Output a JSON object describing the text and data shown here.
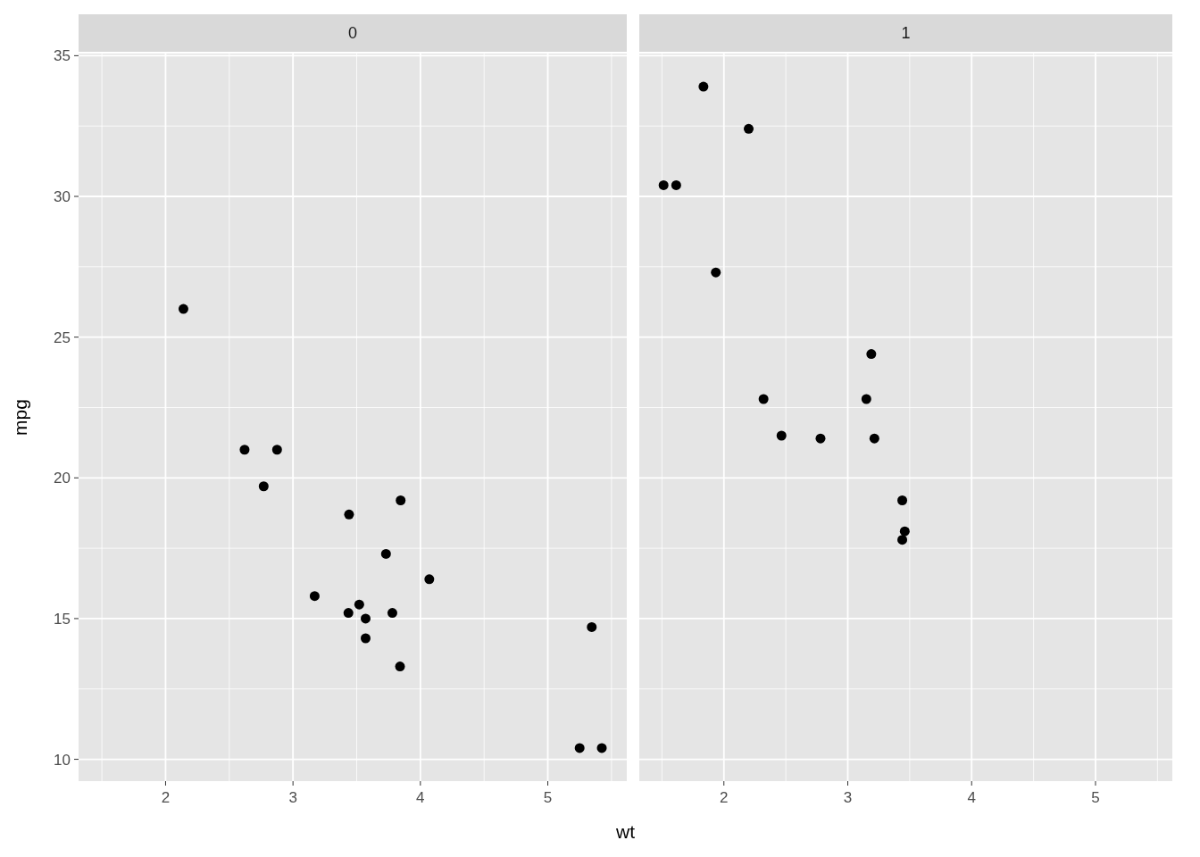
{
  "chart_data": [
    {
      "type": "scatter",
      "title": "0",
      "xlabel": "wt",
      "ylabel": "mpg",
      "grid": true,
      "marker": "circle",
      "xlim": [
        1.317,
        5.62
      ],
      "ylim": [
        9.225,
        35.075
      ],
      "xticks": [
        2,
        3,
        4,
        5
      ],
      "yticks": [
        10,
        15,
        20,
        25,
        30,
        35
      ],
      "series": [
        {
          "color": "#000000",
          "x": [
            2.62,
            2.875,
            3.44,
            3.57,
            4.07,
            3.73,
            3.78,
            5.25,
            5.424,
            5.345,
            3.52,
            3.435,
            3.84,
            3.845,
            2.14,
            3.17,
            2.77,
            3.57
          ],
          "values": [
            21,
            21,
            18.7,
            14.3,
            16.4,
            17.3,
            15.2,
            10.4,
            10.4,
            14.7,
            15.5,
            15.2,
            13.3,
            19.2,
            26,
            15.8,
            19.7,
            15
          ]
        }
      ]
    },
    {
      "type": "scatter",
      "title": "1",
      "grid": true,
      "marker": "circle",
      "tick_labels": "x",
      "xlim": [
        1.317,
        5.62
      ],
      "ylim": [
        9.225,
        35.075
      ],
      "xticks": [
        2,
        3,
        4,
        5
      ],
      "yticks": [
        10,
        15,
        20,
        25,
        30,
        35
      ],
      "series": [
        {
          "color": "#000000",
          "x": [
            2.32,
            3.215,
            3.46,
            3.19,
            3.15,
            3.44,
            3.44,
            2.2,
            1.615,
            1.835,
            2.465,
            1.935,
            1.513,
            2.78
          ],
          "values": [
            22.8,
            21.4,
            18.1,
            24.4,
            22.8,
            19.2,
            17.8,
            32.4,
            30.4,
            33.9,
            21.5,
            27.3,
            30.4,
            21.4
          ]
        }
      ]
    }
  ]
}
